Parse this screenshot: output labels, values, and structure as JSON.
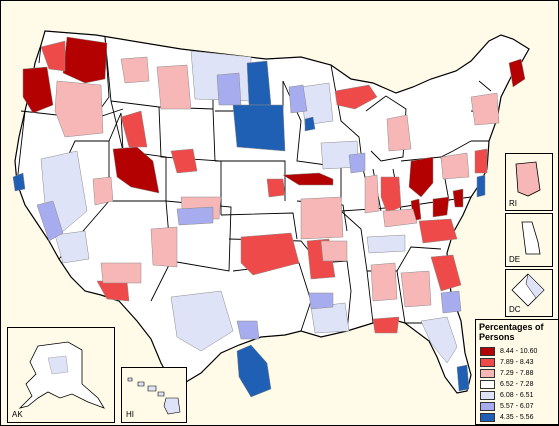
{
  "legend": {
    "title": "Percentages of Persons",
    "classes": [
      {
        "range": "8.44 - 10.60",
        "color": "#b30000"
      },
      {
        "range": "7.89 - 8.43",
        "color": "#ef4a4a"
      },
      {
        "range": "7.29 - 7.88",
        "color": "#f7b7b7"
      },
      {
        "range": "6.52 - 7.28",
        "color": "#ffffff"
      },
      {
        "range": "6.08 - 6.51",
        "color": "#dfe3f7"
      },
      {
        "range": "5.57 - 6.07",
        "color": "#a6acee"
      },
      {
        "range": "4.35 - 5.56",
        "color": "#1f5fb4"
      }
    ]
  },
  "insets": {
    "ak": "AK",
    "hi": "HI",
    "ri": "RI",
    "de": "DE",
    "dc": "DC"
  },
  "colors": {
    "background": "#fffbe8",
    "border": "#000000",
    "region_stroke": "#8a8a8a",
    "state_stroke": "#000000"
  }
}
